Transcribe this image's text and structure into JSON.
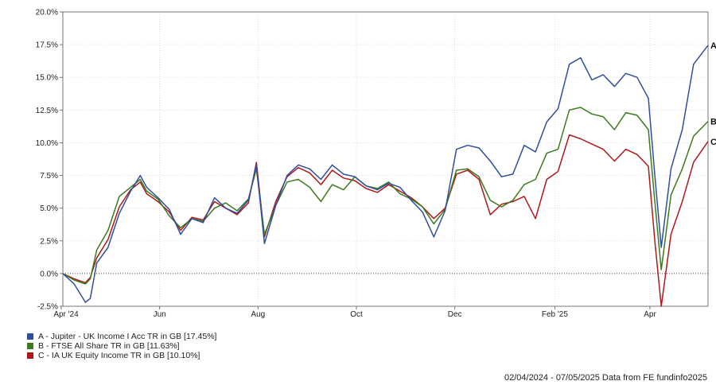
{
  "chart_data": {
    "type": "line",
    "title": "",
    "xlabel": "",
    "ylabel": "",
    "ylim": [
      -2.5,
      20.0
    ],
    "y_ticks": [
      "-2.5%",
      "0.0%",
      "2.5%",
      "5.0%",
      "7.5%",
      "10.0%",
      "12.5%",
      "15.0%",
      "17.5%",
      "20.0%"
    ],
    "y_tick_values": [
      -2.5,
      0.0,
      2.5,
      5.0,
      7.5,
      10.0,
      12.5,
      15.0,
      17.5,
      20.0
    ],
    "x_range": [
      "2024-04-02",
      "2025-05-07"
    ],
    "x_ticks": [
      {
        "label": "Apr '24",
        "date": "2024-04-01"
      },
      {
        "label": "Jun",
        "date": "2024-06-01"
      },
      {
        "label": "Aug",
        "date": "2024-08-01"
      },
      {
        "label": "Oct",
        "date": "2024-10-01"
      },
      {
        "label": "Dec",
        "date": "2024-12-01"
      },
      {
        "label": "Feb '25",
        "date": "2025-02-01"
      },
      {
        "label": "Apr",
        "date": "2025-04-01"
      }
    ],
    "grid": true,
    "zero_line": true,
    "legend_position": "bottom-left",
    "series": [
      {
        "name": "A - Jupiter - UK Income I Acc TR in GB [17.45%]",
        "end_label": "A",
        "color": "#2e4fa1",
        "points": [
          [
            "2024-04-02",
            0.0
          ],
          [
            "2024-04-09",
            -0.8
          ],
          [
            "2024-04-16",
            -2.2
          ],
          [
            "2024-04-19",
            -1.9
          ],
          [
            "2024-04-23",
            0.8
          ],
          [
            "2024-04-30",
            2.0
          ],
          [
            "2024-05-07",
            4.6
          ],
          [
            "2024-05-14",
            6.3
          ],
          [
            "2024-05-20",
            7.5
          ],
          [
            "2024-05-24",
            6.6
          ],
          [
            "2024-05-31",
            5.8
          ],
          [
            "2024-06-07",
            4.9
          ],
          [
            "2024-06-14",
            3.0
          ],
          [
            "2024-06-21",
            4.2
          ],
          [
            "2024-06-28",
            3.9
          ],
          [
            "2024-07-05",
            5.8
          ],
          [
            "2024-07-12",
            5.0
          ],
          [
            "2024-07-19",
            4.6
          ],
          [
            "2024-07-26",
            5.6
          ],
          [
            "2024-07-31",
            8.3
          ],
          [
            "2024-08-05",
            2.3
          ],
          [
            "2024-08-12",
            5.2
          ],
          [
            "2024-08-19",
            7.5
          ],
          [
            "2024-08-26",
            8.3
          ],
          [
            "2024-09-02",
            8.0
          ],
          [
            "2024-09-09",
            7.2
          ],
          [
            "2024-09-16",
            8.3
          ],
          [
            "2024-09-23",
            7.6
          ],
          [
            "2024-09-30",
            7.4
          ],
          [
            "2024-10-07",
            6.7
          ],
          [
            "2024-10-14",
            6.4
          ],
          [
            "2024-10-21",
            6.9
          ],
          [
            "2024-10-28",
            6.6
          ],
          [
            "2024-11-04",
            5.6
          ],
          [
            "2024-11-11",
            4.7
          ],
          [
            "2024-11-18",
            2.8
          ],
          [
            "2024-11-25",
            4.8
          ],
          [
            "2024-12-02",
            9.5
          ],
          [
            "2024-12-09",
            9.8
          ],
          [
            "2024-12-16",
            9.6
          ],
          [
            "2024-12-23",
            8.6
          ],
          [
            "2024-12-30",
            7.4
          ],
          [
            "2025-01-06",
            7.6
          ],
          [
            "2025-01-13",
            9.8
          ],
          [
            "2025-01-20",
            9.3
          ],
          [
            "2025-01-27",
            11.6
          ],
          [
            "2025-02-03",
            12.6
          ],
          [
            "2025-02-10",
            16.0
          ],
          [
            "2025-02-17",
            16.5
          ],
          [
            "2025-02-24",
            14.8
          ],
          [
            "2025-03-03",
            15.2
          ],
          [
            "2025-03-10",
            14.3
          ],
          [
            "2025-03-17",
            15.3
          ],
          [
            "2025-03-24",
            15.0
          ],
          [
            "2025-03-31",
            13.4
          ],
          [
            "2025-04-04",
            7.5
          ],
          [
            "2025-04-08",
            2.0
          ],
          [
            "2025-04-14",
            8.0
          ],
          [
            "2025-04-21",
            11.0
          ],
          [
            "2025-04-28",
            16.0
          ],
          [
            "2025-05-07",
            17.45
          ]
        ]
      },
      {
        "name": "B - FTSE All Share TR in GB [11.63%]",
        "end_label": "B",
        "color": "#3d7a1e",
        "points": [
          [
            "2024-04-02",
            0.0
          ],
          [
            "2024-04-09",
            -0.5
          ],
          [
            "2024-04-16",
            -0.8
          ],
          [
            "2024-04-19",
            -0.4
          ],
          [
            "2024-04-23",
            1.8
          ],
          [
            "2024-04-30",
            3.3
          ],
          [
            "2024-05-07",
            5.9
          ],
          [
            "2024-05-14",
            6.6
          ],
          [
            "2024-05-20",
            7.2
          ],
          [
            "2024-05-24",
            6.3
          ],
          [
            "2024-05-31",
            5.7
          ],
          [
            "2024-06-07",
            4.4
          ],
          [
            "2024-06-14",
            3.5
          ],
          [
            "2024-06-21",
            4.2
          ],
          [
            "2024-06-28",
            4.0
          ],
          [
            "2024-07-05",
            5.0
          ],
          [
            "2024-07-12",
            5.4
          ],
          [
            "2024-07-19",
            4.8
          ],
          [
            "2024-07-26",
            5.7
          ],
          [
            "2024-07-31",
            8.0
          ],
          [
            "2024-08-05",
            3.0
          ],
          [
            "2024-08-12",
            5.2
          ],
          [
            "2024-08-19",
            7.0
          ],
          [
            "2024-08-26",
            7.2
          ],
          [
            "2024-09-02",
            6.6
          ],
          [
            "2024-09-09",
            5.5
          ],
          [
            "2024-09-16",
            6.8
          ],
          [
            "2024-09-23",
            6.4
          ],
          [
            "2024-09-30",
            7.4
          ],
          [
            "2024-10-07",
            6.7
          ],
          [
            "2024-10-14",
            6.5
          ],
          [
            "2024-10-21",
            7.0
          ],
          [
            "2024-10-28",
            6.1
          ],
          [
            "2024-11-04",
            5.7
          ],
          [
            "2024-11-11",
            5.1
          ],
          [
            "2024-11-18",
            3.8
          ],
          [
            "2024-11-25",
            4.9
          ],
          [
            "2024-12-02",
            7.9
          ],
          [
            "2024-12-09",
            8.0
          ],
          [
            "2024-12-16",
            7.4
          ],
          [
            "2024-12-23",
            5.6
          ],
          [
            "2024-12-30",
            5.1
          ],
          [
            "2025-01-06",
            5.6
          ],
          [
            "2025-01-13",
            6.8
          ],
          [
            "2025-01-20",
            7.2
          ],
          [
            "2025-01-27",
            9.2
          ],
          [
            "2025-02-03",
            9.5
          ],
          [
            "2025-02-10",
            12.5
          ],
          [
            "2025-02-17",
            12.7
          ],
          [
            "2025-02-24",
            12.2
          ],
          [
            "2025-03-03",
            12.0
          ],
          [
            "2025-03-10",
            11.0
          ],
          [
            "2025-03-17",
            12.3
          ],
          [
            "2025-03-24",
            12.1
          ],
          [
            "2025-03-31",
            11.0
          ],
          [
            "2025-04-04",
            5.5
          ],
          [
            "2025-04-08",
            0.3
          ],
          [
            "2025-04-14",
            6.0
          ],
          [
            "2025-04-21",
            8.0
          ],
          [
            "2025-04-28",
            10.5
          ],
          [
            "2025-05-07",
            11.63
          ]
        ]
      },
      {
        "name": "C - IA UK Equity Income TR in GB [10.10%]",
        "end_label": "C",
        "color": "#b01818",
        "points": [
          [
            "2024-04-02",
            0.0
          ],
          [
            "2024-04-09",
            -0.4
          ],
          [
            "2024-04-16",
            -0.7
          ],
          [
            "2024-04-19",
            -0.3
          ],
          [
            "2024-04-23",
            1.2
          ],
          [
            "2024-04-30",
            2.6
          ],
          [
            "2024-05-07",
            5.1
          ],
          [
            "2024-05-14",
            6.4
          ],
          [
            "2024-05-20",
            7.0
          ],
          [
            "2024-05-24",
            6.1
          ],
          [
            "2024-05-31",
            5.5
          ],
          [
            "2024-06-07",
            4.7
          ],
          [
            "2024-06-14",
            3.3
          ],
          [
            "2024-06-21",
            4.3
          ],
          [
            "2024-06-28",
            4.1
          ],
          [
            "2024-07-05",
            5.5
          ],
          [
            "2024-07-12",
            5.0
          ],
          [
            "2024-07-19",
            4.5
          ],
          [
            "2024-07-26",
            5.4
          ],
          [
            "2024-07-31",
            8.5
          ],
          [
            "2024-08-05",
            2.8
          ],
          [
            "2024-08-12",
            5.5
          ],
          [
            "2024-08-19",
            7.4
          ],
          [
            "2024-08-26",
            8.1
          ],
          [
            "2024-09-02",
            7.7
          ],
          [
            "2024-09-09",
            6.8
          ],
          [
            "2024-09-16",
            7.9
          ],
          [
            "2024-09-23",
            7.3
          ],
          [
            "2024-09-30",
            7.1
          ],
          [
            "2024-10-07",
            6.5
          ],
          [
            "2024-10-14",
            6.2
          ],
          [
            "2024-10-21",
            6.8
          ],
          [
            "2024-10-28",
            6.3
          ],
          [
            "2024-11-04",
            5.8
          ],
          [
            "2024-11-11",
            5.1
          ],
          [
            "2024-11-18",
            4.2
          ],
          [
            "2024-11-25",
            5.0
          ],
          [
            "2024-12-02",
            7.6
          ],
          [
            "2024-12-09",
            7.9
          ],
          [
            "2024-12-16",
            7.2
          ],
          [
            "2024-12-23",
            4.5
          ],
          [
            "2024-12-30",
            5.3
          ],
          [
            "2025-01-06",
            5.5
          ],
          [
            "2025-01-13",
            5.9
          ],
          [
            "2025-01-20",
            4.2
          ],
          [
            "2025-01-27",
            7.2
          ],
          [
            "2025-02-03",
            7.8
          ],
          [
            "2025-02-10",
            10.6
          ],
          [
            "2025-02-17",
            10.3
          ],
          [
            "2025-02-24",
            9.9
          ],
          [
            "2025-03-03",
            9.5
          ],
          [
            "2025-03-10",
            8.6
          ],
          [
            "2025-03-17",
            9.5
          ],
          [
            "2025-03-24",
            9.1
          ],
          [
            "2025-03-31",
            8.2
          ],
          [
            "2025-04-04",
            2.5
          ],
          [
            "2025-04-08",
            -2.5
          ],
          [
            "2025-04-14",
            3.0
          ],
          [
            "2025-04-21",
            5.5
          ],
          [
            "2025-04-28",
            8.5
          ],
          [
            "2025-05-07",
            10.1
          ]
        ]
      }
    ]
  },
  "footer": {
    "text": "02/04/2024 - 07/05/2025 Data from FE fundinfo2025"
  }
}
